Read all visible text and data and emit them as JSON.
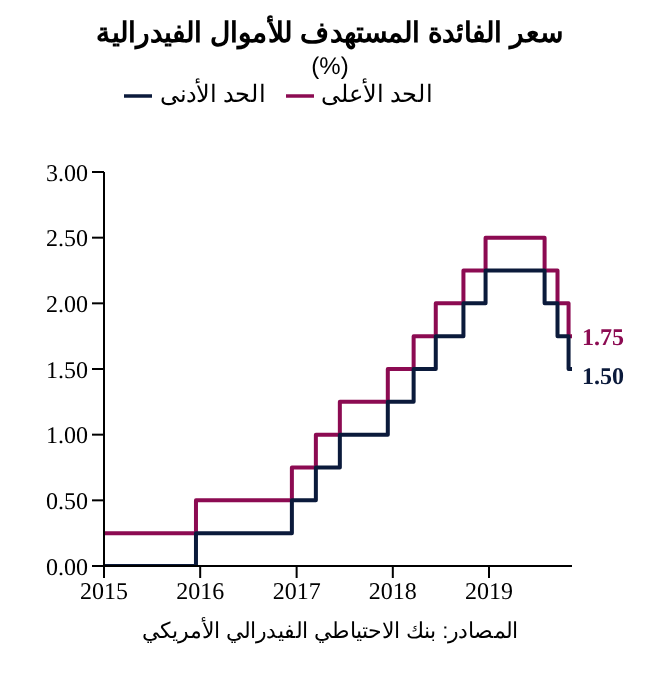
{
  "chart_data": {
    "type": "step",
    "title": "سعر الفائدة المستهدف للأموال الفيدرالية",
    "subtitle": "(%)",
    "x": [
      "2015-01-01",
      "2015-12-16",
      "2016-12-14",
      "2017-03-15",
      "2017-06-14",
      "2017-12-13",
      "2018-03-21",
      "2018-06-13",
      "2018-09-26",
      "2018-12-19",
      "2019-07-31",
      "2019-09-18",
      "2019-10-30",
      "2019-11-12"
    ],
    "series": [
      {
        "name": "الحد الأعلى",
        "color": "#8c0b52",
        "values": [
          0.25,
          0.5,
          0.75,
          1.0,
          1.25,
          1.5,
          1.75,
          2.0,
          2.25,
          2.5,
          2.25,
          2.0,
          1.75,
          1.75
        ]
      },
      {
        "name": "الحد الأدنى",
        "color": "#0b1a3b",
        "values": [
          0,
          0.25,
          0.5,
          0.75,
          1.0,
          1.25,
          1.5,
          1.75,
          2.0,
          2.25,
          2.0,
          1.75,
          1.5,
          1.5
        ]
      }
    ],
    "xlim": [
      "2015-01-01",
      "2019-11-12"
    ],
    "xticks": [
      {
        "value": "2015-01-01",
        "label": "2015"
      },
      {
        "value": "2016-01-01",
        "label": "2016"
      },
      {
        "value": "2017-01-01",
        "label": "2017"
      },
      {
        "value": "2018-01-01",
        "label": "2018"
      },
      {
        "value": "2019-01-01",
        "label": "2019"
      }
    ],
    "ylim": [
      0,
      3
    ],
    "yticks": [
      {
        "value": 0,
        "label": "0.00"
      },
      {
        "value": 0.5,
        "label": "0.50"
      },
      {
        "value": 1,
        "label": "1.00"
      },
      {
        "value": 1.5,
        "label": "1.50"
      },
      {
        "value": 2,
        "label": "2.00"
      },
      {
        "value": 2.5,
        "label": "2.50"
      },
      {
        "value": 3,
        "label": "3.00"
      }
    ],
    "grid": false,
    "legend": "top",
    "marker": "none",
    "line_style": "solid",
    "annotations": [
      {
        "text": "1.75",
        "x": "2019-11-12",
        "y": 1.75
      },
      {
        "text": "1.50",
        "x": "2019-11-12",
        "y": 1.5
      },
      "المصادر: بنك الاحتياطي الفيدرالي الأمريكي"
    ]
  }
}
